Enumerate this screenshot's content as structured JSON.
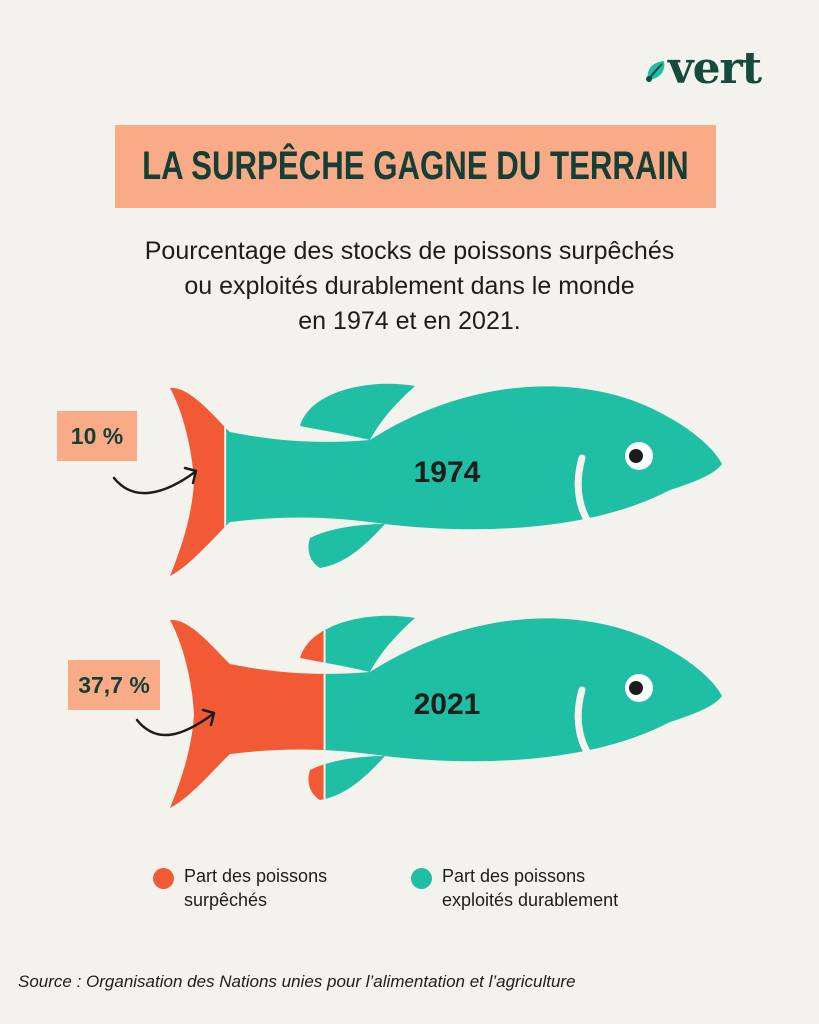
{
  "brand": {
    "name": "vert",
    "color": "#154a3d"
  },
  "title": "LA SURPÊCHE GAGNE DU TERRAIN",
  "subtitle_lines": [
    "Pourcentage des stocks de poissons surpêchés",
    "ou exploités durablement dans le monde",
    "en 1974 et en 2021."
  ],
  "colors": {
    "overfished": "#f15a35",
    "sustainable": "#1fbfa6",
    "title_bg": "#f9ab88",
    "label_bg": "#f9ab88",
    "dark": "#1d1d1b"
  },
  "chart_data": {
    "type": "bar",
    "categories": [
      "1974",
      "2021"
    ],
    "series": [
      {
        "name": "Part des poissons surpêchés",
        "values": [
          10,
          37.7
        ]
      },
      {
        "name": "Part des poissons exploités durablement",
        "values": [
          90,
          62.3
        ]
      }
    ],
    "value_labels": [
      "10 %",
      "37,7 %"
    ],
    "unit": "%",
    "legend_position": "bottom"
  },
  "legend": [
    {
      "lines": [
        "Part des poissons",
        "surpêchés"
      ],
      "color": "#f15a35"
    },
    {
      "lines": [
        "Part des poissons",
        "exploités durablement"
      ],
      "color": "#1fbfa6"
    }
  ],
  "source": "Source : Organisation des Nations unies pour l’alimentation et l’agriculture"
}
